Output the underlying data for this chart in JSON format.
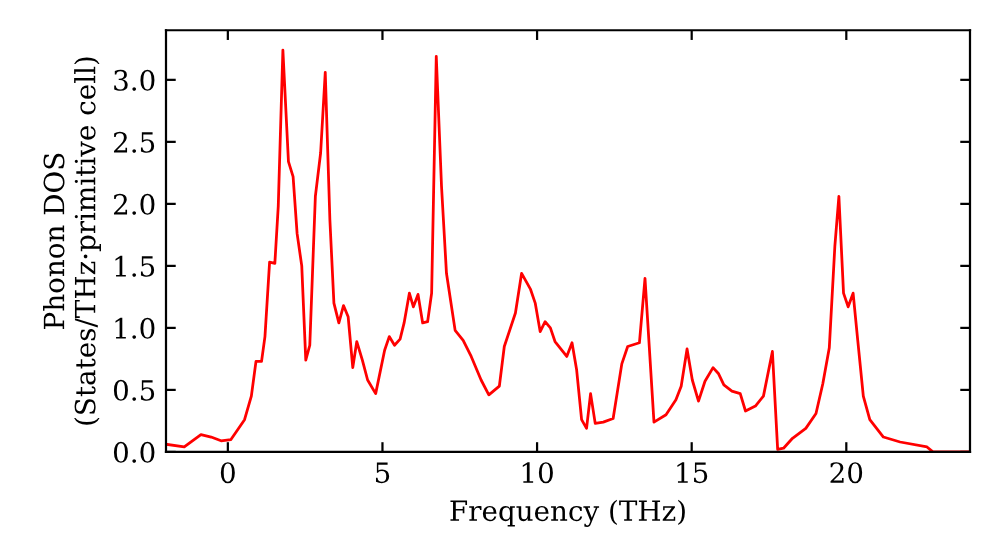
{
  "chart_data": {
    "type": "line",
    "xlabel": "Frequency (THz)",
    "ylabel": "Phonon DOS\n(States/THz·primitive cell)",
    "x": [
      -1.96,
      -1.41,
      -0.87,
      -0.54,
      -0.22,
      0.1,
      0.54,
      0.76,
      0.91,
      1.09,
      1.2,
      1.35,
      1.52,
      1.63,
      1.78,
      1.96,
      2.11,
      2.24,
      2.39,
      2.52,
      2.65,
      2.83,
      3.0,
      3.15,
      3.3,
      3.43,
      3.59,
      3.74,
      3.89,
      4.04,
      4.17,
      4.35,
      4.52,
      4.78,
      5.07,
      5.22,
      5.39,
      5.57,
      5.7,
      5.87,
      6.0,
      6.15,
      6.3,
      6.46,
      6.59,
      6.74,
      6.91,
      7.07,
      7.35,
      7.61,
      7.87,
      8.19,
      8.44,
      8.78,
      8.94,
      9.3,
      9.5,
      9.79,
      9.94,
      10.1,
      10.26,
      10.43,
      10.58,
      10.96,
      11.13,
      11.28,
      11.44,
      11.6,
      11.73,
      11.88,
      12.14,
      12.46,
      12.74,
      12.93,
      13.31,
      13.49,
      13.78,
      14.17,
      14.49,
      14.66,
      14.85,
      15.02,
      15.22,
      15.43,
      15.69,
      15.87,
      16.04,
      16.3,
      16.57,
      16.74,
      17.06,
      17.32,
      17.61,
      17.78,
      17.97,
      18.26,
      18.69,
      19.02,
      19.24,
      19.45,
      19.63,
      19.76,
      19.91,
      20.06,
      20.22,
      20.37,
      20.55,
      20.76,
      21.2,
      21.74,
      22.61,
      22.8,
      24.0
    ],
    "series": [
      {
        "color": "#ff0000",
        "values": [
          0.06,
          0.04,
          0.14,
          0.12,
          0.09,
          0.1,
          0.26,
          0.45,
          0.73,
          0.73,
          0.93,
          1.53,
          1.52,
          1.98,
          3.24,
          2.34,
          2.22,
          1.76,
          1.5,
          0.74,
          0.86,
          2.06,
          2.41,
          3.06,
          1.87,
          1.2,
          1.04,
          1.18,
          1.09,
          0.68,
          0.89,
          0.74,
          0.58,
          0.47,
          0.82,
          0.93,
          0.86,
          0.91,
          1.04,
          1.28,
          1.17,
          1.27,
          1.04,
          1.05,
          1.28,
          3.19,
          2.14,
          1.44,
          0.98,
          0.9,
          0.77,
          0.58,
          0.46,
          0.53,
          0.85,
          1.12,
          1.44,
          1.31,
          1.2,
          0.97,
          1.05,
          1.0,
          0.89,
          0.77,
          0.88,
          0.66,
          0.26,
          0.19,
          0.47,
          0.23,
          0.24,
          0.27,
          0.71,
          0.85,
          0.88,
          1.4,
          0.24,
          0.3,
          0.42,
          0.53,
          0.83,
          0.58,
          0.41,
          0.57,
          0.68,
          0.63,
          0.54,
          0.49,
          0.47,
          0.33,
          0.37,
          0.45,
          0.81,
          0.02,
          0.03,
          0.11,
          0.19,
          0.31,
          0.55,
          0.84,
          1.66,
          2.06,
          1.28,
          1.17,
          1.28,
          0.9,
          0.45,
          0.26,
          0.12,
          0.08,
          0.04,
          0.0,
          0.0
        ]
      }
    ],
    "xlim": [
      -2,
      24
    ],
    "ylim": [
      0,
      3.4
    ],
    "xticks": [
      0,
      5,
      10,
      15,
      20
    ],
    "yticks": [
      {
        "value": 0,
        "label": "0.0"
      },
      {
        "value": 0.5,
        "label": "0.5"
      },
      {
        "value": 1,
        "label": "1.0"
      },
      {
        "value": 1.5,
        "label": "1.5"
      },
      {
        "value": 2,
        "label": "2.0"
      },
      {
        "value": 2.5,
        "label": "2.5"
      },
      {
        "value": 3,
        "label": "3.0"
      }
    ],
    "grid": false,
    "legend": false
  }
}
